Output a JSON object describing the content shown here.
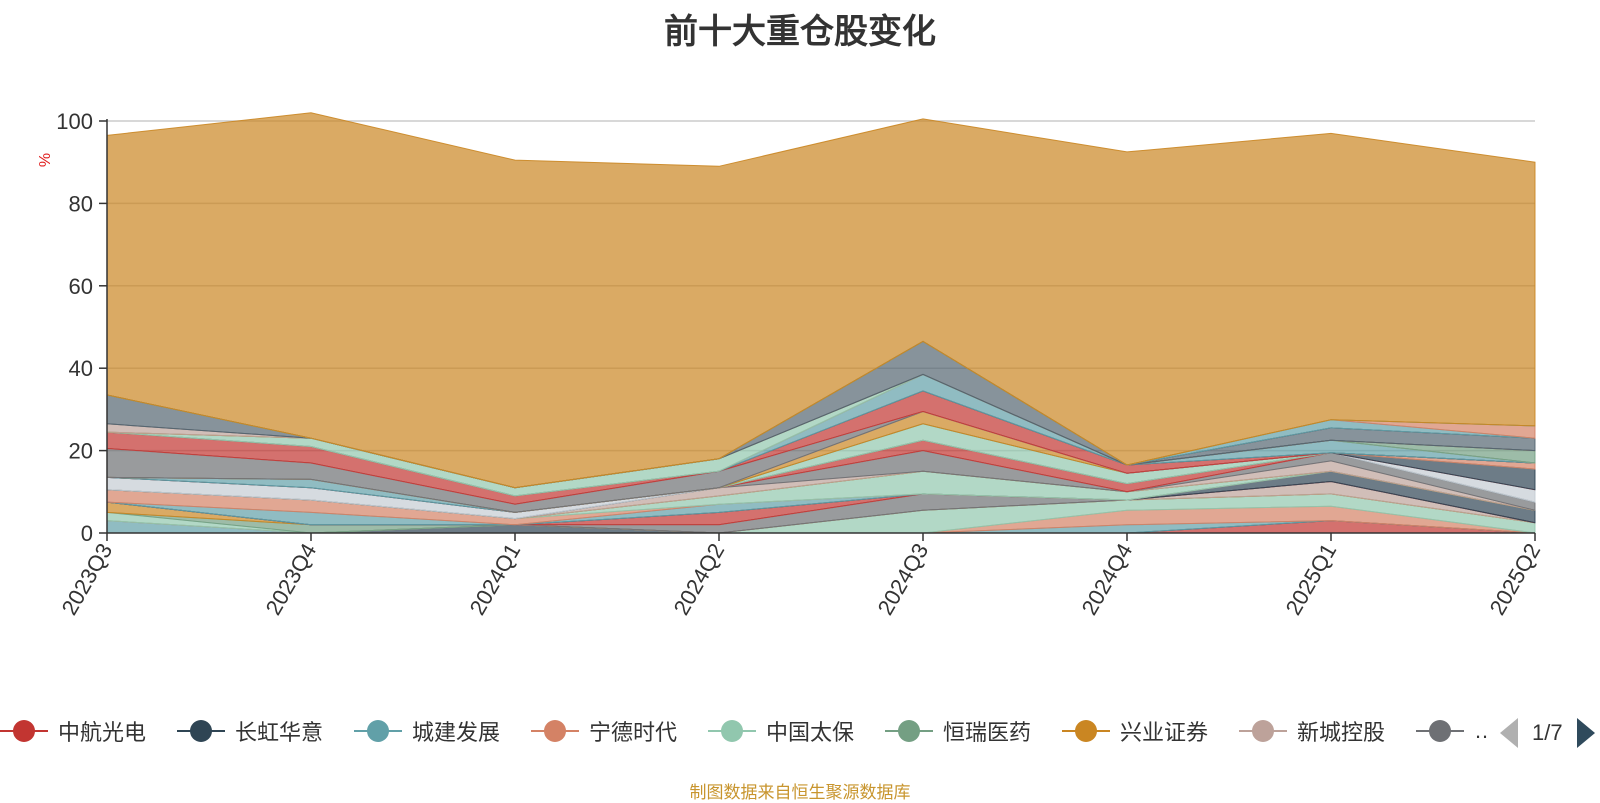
{
  "chart_data": {
    "type": "area",
    "title": "前十大重仓股变化",
    "ylabel": "%",
    "ylim": [
      0,
      100
    ],
    "yticks": [
      0,
      20,
      40,
      60,
      80,
      100
    ],
    "grid": true,
    "legend_position": "bottom",
    "categories": [
      "2023Q3",
      "2023Q4",
      "2024Q1",
      "2024Q2",
      "2024Q3",
      "2024Q4",
      "2025Q1",
      "2025Q2"
    ],
    "series": [
      {
        "name": "中航光电",
        "color": "#c23531",
        "values": [
          0,
          0,
          0,
          0,
          0,
          0,
          3,
          0
        ]
      },
      {
        "name": "长虹华意",
        "color": "#2f4554",
        "values": [
          0,
          0,
          2,
          0,
          0,
          0,
          0,
          0
        ]
      },
      {
        "name": "城建发展",
        "color": "#61a0a8",
        "values": [
          3,
          0,
          0,
          0,
          0,
          2,
          0,
          0
        ]
      },
      {
        "name": "宁德时代",
        "color": "#d48265",
        "values": [
          0,
          0,
          0,
          0,
          0,
          3.5,
          3.5,
          0
        ]
      },
      {
        "name": "中国太保",
        "color": "#91c7ae",
        "values": [
          2,
          0,
          0,
          0,
          5.5,
          2.5,
          3,
          2.5
        ]
      },
      {
        "name": "恒瑞医药",
        "color": "#749f83",
        "values": [
          0,
          2,
          0,
          0,
          0,
          0,
          0,
          0
        ]
      },
      {
        "name": "兴业证券",
        "color": "#ca8622",
        "values": [
          2.5,
          0,
          0,
          0,
          0,
          0,
          0,
          0
        ]
      },
      {
        "name": "新城控股",
        "color": "#bda29a",
        "values": [
          0,
          0,
          0,
          0,
          0,
          0,
          3,
          0
        ]
      },
      {
        "name": "",
        "color": "#6e7074",
        "values": [
          0,
          0,
          0,
          2,
          4,
          0,
          0,
          0
        ]
      },
      {
        "name": "",
        "color": "#546570",
        "values": [
          0,
          0,
          0,
          0,
          0,
          0,
          0,
          0
        ]
      },
      {
        "name": "",
        "color": "#c4ccd3",
        "values": [
          0,
          0,
          0,
          0,
          0,
          0,
          0,
          0
        ]
      },
      {
        "name": "",
        "color": "#c23531",
        "values": [
          0,
          0,
          0,
          3,
          0,
          0,
          0,
          0
        ]
      },
      {
        "name": "",
        "color": "#2f4554",
        "values": [
          0,
          0,
          0,
          0,
          0,
          0,
          2.5,
          3
        ]
      },
      {
        "name": "",
        "color": "#61a0a8",
        "values": [
          0,
          3,
          0,
          2,
          0,
          0,
          0,
          0
        ]
      },
      {
        "name": "",
        "color": "#d48265",
        "values": [
          3,
          3,
          1.5,
          0,
          0,
          0,
          0,
          0
        ]
      },
      {
        "name": "",
        "color": "#91c7ae",
        "values": [
          0,
          0,
          0,
          2,
          5.5,
          2,
          0,
          0
        ]
      },
      {
        "name": "",
        "color": "#749f83",
        "values": [
          0,
          0,
          0,
          0,
          0,
          0,
          0,
          0
        ]
      },
      {
        "name": "",
        "color": "#ca8622",
        "values": [
          0,
          0,
          0,
          0,
          0,
          0,
          0,
          0
        ]
      },
      {
        "name": "",
        "color": "#bda29a",
        "values": [
          0,
          0,
          0,
          2,
          0,
          0,
          2.5,
          0
        ]
      },
      {
        "name": "",
        "color": "#6e7074",
        "values": [
          0,
          0,
          0,
          0,
          5,
          0,
          2,
          2
        ]
      },
      {
        "name": "",
        "color": "#546570",
        "values": [
          0,
          0,
          0,
          0,
          0,
          0,
          0,
          0
        ]
      },
      {
        "name": "",
        "color": "#c4ccd3",
        "values": [
          3,
          3,
          1.5,
          0,
          0,
          0,
          0,
          3
        ]
      },
      {
        "name": "",
        "color": "#c23531",
        "values": [
          0,
          0,
          0,
          0,
          2.5,
          2,
          0,
          0
        ]
      },
      {
        "name": "",
        "color": "#2f4554",
        "values": [
          0,
          0,
          0,
          0,
          0,
          0,
          0,
          5
        ]
      },
      {
        "name": "",
        "color": "#61a0a8",
        "values": [
          0,
          2,
          0,
          0,
          0,
          0,
          0,
          0
        ]
      },
      {
        "name": "",
        "color": "#d48265",
        "values": [
          0,
          0,
          0,
          0,
          0,
          0,
          0,
          1.5
        ]
      },
      {
        "name": "",
        "color": "#91c7ae",
        "values": [
          0,
          0,
          0,
          0,
          4,
          2.5,
          0,
          0
        ]
      },
      {
        "name": "",
        "color": "#749f83",
        "values": [
          0,
          0,
          0,
          0,
          0,
          0,
          0,
          0
        ]
      },
      {
        "name": "",
        "color": "#ca8622",
        "values": [
          0,
          0,
          0,
          0,
          3,
          0,
          0,
          0
        ]
      },
      {
        "name": "",
        "color": "#bda29a",
        "values": [
          0,
          0,
          0,
          0,
          0,
          0,
          0,
          0
        ]
      },
      {
        "name": "",
        "color": "#6e7074",
        "values": [
          7,
          4,
          2,
          4,
          0,
          0,
          0,
          0
        ]
      },
      {
        "name": "",
        "color": "#546570",
        "values": [
          0,
          0,
          0,
          0,
          0,
          0,
          0,
          0
        ]
      },
      {
        "name": "",
        "color": "#c4ccd3",
        "values": [
          0,
          0,
          0,
          0,
          0,
          0,
          0,
          0
        ]
      },
      {
        "name": "",
        "color": "#c23531",
        "values": [
          4,
          4,
          2,
          0,
          5,
          2,
          0,
          0
        ]
      },
      {
        "name": "",
        "color": "#2f4554",
        "values": [
          0,
          0,
          0,
          0,
          0,
          0,
          0,
          0
        ]
      },
      {
        "name": "",
        "color": "#61a0a8",
        "values": [
          0,
          0,
          0,
          0,
          4,
          0,
          3,
          0
        ]
      },
      {
        "name": "",
        "color": "#d48265",
        "values": [
          0,
          0,
          0,
          0,
          0,
          0,
          0,
          0
        ]
      },
      {
        "name": "",
        "color": "#91c7ae",
        "values": [
          0,
          2,
          2,
          3,
          0,
          0,
          0,
          0
        ]
      },
      {
        "name": "",
        "color": "#749f83",
        "values": [
          0,
          0,
          0,
          0,
          0,
          0,
          0,
          3
        ]
      },
      {
        "name": "",
        "color": "#ca8622",
        "values": [
          0,
          0,
          0,
          0,
          0,
          0,
          0,
          0
        ]
      },
      {
        "name": "",
        "color": "#bda29a",
        "values": [
          2,
          0,
          0,
          0,
          0,
          0,
          0,
          0
        ]
      },
      {
        "name": "",
        "color": "#6e7074",
        "values": [
          0,
          0,
          0,
          0,
          0,
          0,
          0,
          0
        ]
      },
      {
        "name": "",
        "color": "#546570",
        "values": [
          7,
          0,
          0,
          0,
          8,
          0,
          3,
          3
        ]
      },
      {
        "name": "",
        "color": "#c4ccd3",
        "values": [
          0,
          0,
          0,
          0,
          0,
          0,
          0,
          0
        ]
      },
      {
        "name": "",
        "color": "#c23531",
        "values": [
          0,
          0,
          0,
          0,
          0,
          0,
          0,
          0
        ]
      },
      {
        "name": "",
        "color": "#2f4554",
        "values": [
          0,
          0,
          0,
          0,
          0,
          0,
          0,
          0
        ]
      },
      {
        "name": "",
        "color": "#61a0a8",
        "values": [
          0,
          0,
          0,
          0,
          0,
          0,
          2,
          0
        ]
      },
      {
        "name": "",
        "color": "#d48265",
        "values": [
          0,
          0,
          0,
          0,
          0,
          0,
          0,
          3
        ]
      },
      {
        "name": "",
        "color": "#91c7ae",
        "values": [
          0,
          0,
          0,
          0,
          0,
          0,
          0,
          0
        ]
      },
      {
        "name": "",
        "color": "#749f83",
        "values": [
          0,
          0,
          0,
          0,
          0,
          0,
          0,
          0
        ]
      },
      {
        "name": "",
        "color": "#ca8622",
        "values": [
          63,
          79,
          79.5,
          71,
          54,
          76,
          69.5,
          64
        ]
      }
    ]
  },
  "legend": {
    "items": [
      {
        "label": "中航光电",
        "color": "#c23531"
      },
      {
        "label": "长虹华意",
        "color": "#2f4554"
      },
      {
        "label": "城建发展",
        "color": "#61a0a8"
      },
      {
        "label": "宁德时代",
        "color": "#d48265"
      },
      {
        "label": "中国太保",
        "color": "#91c7ae"
      },
      {
        "label": "恒瑞医药",
        "color": "#749f83"
      },
      {
        "label": "兴业证券",
        "color": "#ca8622"
      },
      {
        "label": "新城控股",
        "color": "#bda29a"
      },
      {
        "label": "",
        "color": "#6e7074"
      }
    ],
    "truncated_tail": "…",
    "page_indicator": "1/7"
  },
  "footer": {
    "source_note": "制图数据来自恒生聚源数据库"
  }
}
